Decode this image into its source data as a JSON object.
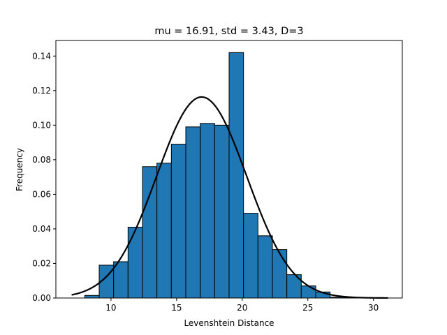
{
  "chart_data": {
    "type": "bar",
    "title": "mu = 16.91,  std = 3.43,  D=3",
    "xlabel": "Levenshtein Distance",
    "ylabel": "Frequency",
    "xlim": [
      5.8,
      32.2
    ],
    "ylim": [
      0,
      0.149
    ],
    "xticks": [
      10,
      15,
      20,
      25,
      30
    ],
    "yticks": [
      0.0,
      0.02,
      0.04,
      0.06,
      0.08,
      0.1,
      0.12,
      0.14
    ],
    "ytick_labels": [
      "0.00",
      "0.02",
      "0.04",
      "0.06",
      "0.08",
      "0.10",
      "0.12",
      "0.14"
    ],
    "grid": false,
    "bar_color": "#1f77b4",
    "bar_edge_color": "#000000",
    "curve_color": "#000000",
    "bins": [
      {
        "x0": 8.0,
        "x1": 9.1,
        "value": 0.0015
      },
      {
        "x0": 9.1,
        "x1": 10.2,
        "value": 0.019
      },
      {
        "x0": 10.2,
        "x1": 11.3,
        "value": 0.021
      },
      {
        "x0": 11.3,
        "x1": 12.4,
        "value": 0.041
      },
      {
        "x0": 12.4,
        "x1": 13.5,
        "value": 0.076
      },
      {
        "x0": 13.5,
        "x1": 14.6,
        "value": 0.078
      },
      {
        "x0": 14.6,
        "x1": 15.7,
        "value": 0.089
      },
      {
        "x0": 15.7,
        "x1": 16.8,
        "value": 0.099
      },
      {
        "x0": 16.8,
        "x1": 17.9,
        "value": 0.101
      },
      {
        "x0": 17.9,
        "x1": 19.0,
        "value": 0.1
      },
      {
        "x0": 19.0,
        "x1": 20.1,
        "value": 0.142
      },
      {
        "x0": 20.1,
        "x1": 21.2,
        "value": 0.049
      },
      {
        "x0": 21.2,
        "x1": 22.3,
        "value": 0.036
      },
      {
        "x0": 22.3,
        "x1": 23.4,
        "value": 0.028
      },
      {
        "x0": 23.4,
        "x1": 24.5,
        "value": 0.0135
      },
      {
        "x0": 24.5,
        "x1": 25.6,
        "value": 0.007
      },
      {
        "x0": 25.6,
        "x1": 26.7,
        "value": 0.0035
      },
      {
        "x0": 26.7,
        "x1": 27.8,
        "value": 0.0005
      },
      {
        "x0": 27.8,
        "x1": 28.9,
        "value": 0.0003
      },
      {
        "x0": 28.9,
        "x1": 30.0,
        "value": 0.0002
      },
      {
        "x0": 30.0,
        "x1": 31.1,
        "value": 0.0002
      }
    ],
    "curve": {
      "type": "normal-pdf",
      "mu": 16.91,
      "std": 3.43,
      "x_range": [
        7.0,
        31.1
      ]
    }
  }
}
